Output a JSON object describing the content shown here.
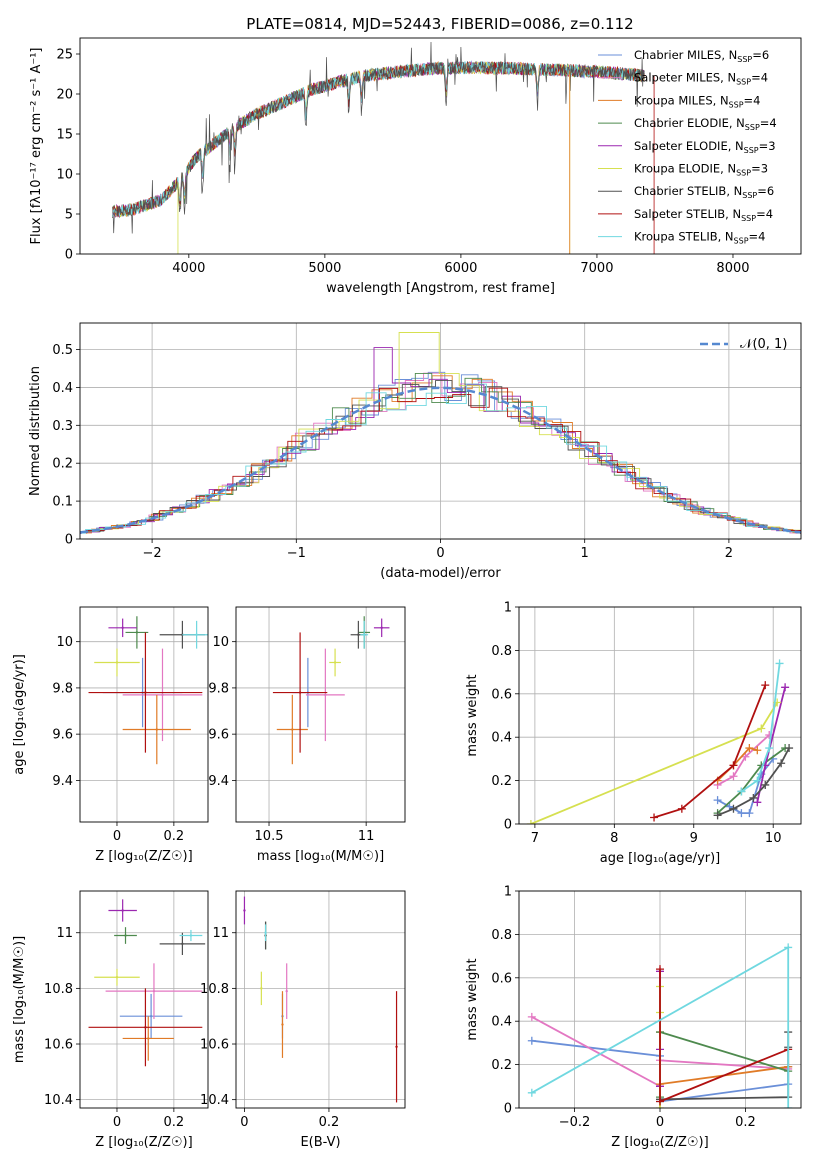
{
  "figure": {
    "title": "PLATE=0814, MJD=52443, FIBERID=0086, z=0.112"
  },
  "model_colors": {
    "Chabrier MILES": "#6a8fd8",
    "Salpeter MILES": "#e377c2",
    "Kroupa MILES": "#e07b27",
    "Chabrier ELODIE": "#4e8a4e",
    "Salpeter ELODIE": "#9b27b0",
    "Kroupa ELODIE": "#d6e050",
    "Chabrier STELIB": "#505050",
    "Salpeter STELIB": "#b01010",
    "Kroupa STELIB": "#70d8e0"
  },
  "chart_data": [
    {
      "id": "spectrum",
      "type": "line",
      "xlabel": "wavelength [Angstrom, rest frame]",
      "ylabel": "Flux [fλ10⁻¹⁷ erg cm⁻² s⁻¹ A⁻¹]",
      "xlim": [
        3200,
        8500
      ],
      "ylim": [
        0,
        27
      ],
      "xticks": [
        4000,
        5000,
        6000,
        7000,
        8000
      ],
      "yticks": [
        0,
        5,
        10,
        15,
        20,
        25
      ],
      "grid": false,
      "legend_position": "right",
      "continuum": {
        "x": [
          3450,
          3600,
          3800,
          3950,
          4050,
          4200,
          4350,
          4500,
          4700,
          4900,
          5100,
          5300,
          5500,
          5800,
          6100,
          6400,
          6700,
          7000,
          7200,
          7350
        ],
        "y": [
          5.3,
          5.6,
          6.8,
          9.5,
          12,
          14,
          16,
          17.5,
          19,
          20.5,
          21.5,
          22.3,
          22.7,
          23.2,
          23.3,
          23.2,
          23,
          22.8,
          22.5,
          22.3
        ]
      },
      "series": [
        {
          "name": "Chabrier MILES, N_SSP=6"
        },
        {
          "name": "Salpeter MILES, N_SSP=4"
        },
        {
          "name": "Kroupa MILES, N_SSP=4"
        },
        {
          "name": "Chabrier ELODIE, N_SSP=4"
        },
        {
          "name": "Salpeter ELODIE, N_SSP=3"
        },
        {
          "name": "Kroupa ELODIE, N_SSP=3"
        },
        {
          "name": "Chabrier STELIB, N_SSP=6"
        },
        {
          "name": "Salpeter STELIB, N_SSP=4"
        },
        {
          "name": "Kroupa STELIB, N_SSP=4"
        }
      ],
      "legend_labels": [
        [
          "Chabrier MILES, N",
          "SSP",
          "=6"
        ],
        [
          "Salpeter MILES, N",
          "SSP",
          "=4"
        ],
        [
          "Kroupa MILES, N",
          "SSP",
          "=4"
        ],
        [
          "Chabrier ELODIE, N",
          "SSP",
          "=4"
        ],
        [
          "Salpeter ELODIE, N",
          "SSP",
          "=3"
        ],
        [
          "Kroupa ELODIE, N",
          "SSP",
          "=3"
        ],
        [
          "Chabrier STELIB, N",
          "SSP",
          "=6"
        ],
        [
          "Salpeter STELIB, N",
          "SSP",
          "=4"
        ],
        [
          "Kroupa STELIB, N",
          "SSP",
          "=4"
        ]
      ]
    },
    {
      "id": "residuals",
      "type": "histogram",
      "xlabel": "(data-model)/error",
      "ylabel": "Normed distribution",
      "xlim": [
        -2.5,
        2.5
      ],
      "ylim": [
        0,
        0.57
      ],
      "xticks": [
        -2,
        -1,
        0,
        1,
        2
      ],
      "yticks": [
        0.0,
        0.1,
        0.2,
        0.3,
        0.4,
        0.5
      ],
      "grid": true,
      "reference_curve": "N(0,1)",
      "legend_position": "top-right"
    },
    {
      "id": "age_vs_Z",
      "type": "scatter",
      "xlabel": "Z [log₁₀(Z/Z☉)]",
      "ylabel": "age  [log₁₀(age/yr)]",
      "xlim": [
        -0.13,
        0.32
      ],
      "ylim": [
        9.22,
        10.15
      ],
      "xticks": [
        0.0,
        0.2
      ],
      "yticks": [
        9.4,
        9.6,
        9.8,
        10.0
      ],
      "grid": true,
      "points": [
        {
          "model": "Chabrier MILES",
          "x": 0.09,
          "y": 9.78,
          "xerr": 0.14,
          "yerr": 0.15
        },
        {
          "model": "Salpeter MILES",
          "x": 0.16,
          "y": 9.77,
          "xerr": 0.14,
          "yerr": 0.2
        },
        {
          "model": "Kroupa MILES",
          "x": 0.14,
          "y": 9.62,
          "xerr": 0.12,
          "yerr": 0.15
        },
        {
          "model": "Chabrier ELODIE",
          "x": 0.07,
          "y": 10.04,
          "xerr": 0.04,
          "yerr": 0.07
        },
        {
          "model": "Salpeter ELODIE",
          "x": 0.02,
          "y": 10.06,
          "xerr": 0.05,
          "yerr": 0.04
        },
        {
          "model": "Kroupa ELODIE",
          "x": 0.0,
          "y": 9.91,
          "xerr": 0.08,
          "yerr": 0.06
        },
        {
          "model": "Chabrier STELIB",
          "x": 0.23,
          "y": 10.03,
          "xerr": 0.08,
          "yerr": 0.06
        },
        {
          "model": "Salpeter STELIB",
          "x": 0.1,
          "y": 9.78,
          "xerr": 0.2,
          "yerr": 0.26
        },
        {
          "model": "Kroupa STELIB",
          "x": 0.28,
          "y": 10.03,
          "xerr": 0.05,
          "yerr": 0.06
        }
      ]
    },
    {
      "id": "age_vs_mass",
      "type": "scatter",
      "xlabel": "mass [log₁₀(M/M☉)]",
      "ylabel": "",
      "xlim": [
        10.33,
        11.2
      ],
      "ylim": [
        9.22,
        10.15
      ],
      "xticks": [
        10.5,
        11.0
      ],
      "yticks": [
        9.4,
        9.6,
        9.8,
        10.0
      ],
      "grid": true,
      "points": [
        {
          "model": "Chabrier MILES",
          "x": 10.7,
          "y": 9.78,
          "xerr": 0.08,
          "yerr": 0.15
        },
        {
          "model": "Salpeter MILES",
          "x": 10.79,
          "y": 9.77,
          "xerr": 0.1,
          "yerr": 0.2
        },
        {
          "model": "Kroupa MILES",
          "x": 10.62,
          "y": 9.62,
          "xerr": 0.08,
          "yerr": 0.15
        },
        {
          "model": "Chabrier ELODIE",
          "x": 10.99,
          "y": 10.04,
          "xerr": 0.03,
          "yerr": 0.07
        },
        {
          "model": "Salpeter ELODIE",
          "x": 11.08,
          "y": 10.06,
          "xerr": 0.04,
          "yerr": 0.04
        },
        {
          "model": "Kroupa ELODIE",
          "x": 10.84,
          "y": 9.91,
          "xerr": 0.03,
          "yerr": 0.06
        },
        {
          "model": "Chabrier STELIB",
          "x": 10.96,
          "y": 10.03,
          "xerr": 0.04,
          "yerr": 0.06
        },
        {
          "model": "Salpeter STELIB",
          "x": 10.66,
          "y": 9.78,
          "xerr": 0.14,
          "yerr": 0.26
        },
        {
          "model": "Kroupa STELIB",
          "x": 10.99,
          "y": 10.03,
          "xerr": 0.02,
          "yerr": 0.06
        }
      ]
    },
    {
      "id": "massweight_vs_age",
      "type": "line",
      "xlabel": "age  [log₁₀(age/yr)]",
      "ylabel": "mass weight",
      "xlim": [
        6.8,
        10.35
      ],
      "ylim": [
        0.0,
        1.0
      ],
      "xticks": [
        7,
        8,
        9,
        10
      ],
      "yticks": [
        0.0,
        0.2,
        0.4,
        0.6,
        0.8,
        1.0
      ],
      "grid": true,
      "series": [
        {
          "model": "Chabrier MILES",
          "x": [
            9.3,
            9.45,
            9.6,
            9.7,
            9.85,
            10.0
          ],
          "y": [
            0.11,
            0.08,
            0.05,
            0.05,
            0.23,
            0.3
          ]
        },
        {
          "model": "Salpeter MILES",
          "x": [
            9.3,
            9.5,
            9.65,
            9.95
          ],
          "y": [
            0.18,
            0.22,
            0.31,
            0.41
          ]
        },
        {
          "model": "Kroupa MILES",
          "x": [
            9.3,
            9.5,
            9.7,
            9.8
          ],
          "y": [
            0.2,
            0.27,
            0.35,
            0.34
          ]
        },
        {
          "model": "Chabrier ELODIE",
          "x": [
            9.3,
            9.6,
            9.85,
            10.15
          ],
          "y": [
            0.05,
            0.15,
            0.27,
            0.35
          ]
        },
        {
          "model": "Salpeter ELODIE",
          "x": [
            9.8,
            9.9,
            10.15
          ],
          "y": [
            0.1,
            0.27,
            0.63
          ]
        },
        {
          "model": "Kroupa ELODIE",
          "x": [
            6.95,
            9.85,
            10.05
          ],
          "y": [
            0.0,
            0.44,
            0.56
          ]
        },
        {
          "model": "Chabrier STELIB",
          "x": [
            9.3,
            9.5,
            9.75,
            9.9,
            10.1,
            10.2
          ],
          "y": [
            0.04,
            0.07,
            0.12,
            0.18,
            0.28,
            0.35
          ]
        },
        {
          "model": "Salpeter STELIB",
          "x": [
            8.5,
            8.85,
            9.5,
            9.9
          ],
          "y": [
            0.03,
            0.07,
            0.27,
            0.64
          ]
        },
        {
          "model": "Kroupa STELIB",
          "x": [
            9.6,
            9.8,
            9.95,
            10.08
          ],
          "y": [
            0.15,
            0.2,
            0.35,
            0.74
          ]
        }
      ]
    },
    {
      "id": "mass_vs_Z",
      "type": "scatter",
      "xlabel": "Z [log₁₀(Z/Z☉)]",
      "ylabel": "mass [log₁₀(M/M☉)]",
      "xlim": [
        -0.13,
        0.32
      ],
      "ylim": [
        10.37,
        11.15
      ],
      "xticks": [
        0.0,
        0.2
      ],
      "yticks": [
        10.4,
        10.6,
        10.8,
        11.0
      ],
      "grid": true,
      "points": [
        {
          "model": "Chabrier MILES",
          "x": 0.12,
          "y": 10.7,
          "xerr": 0.11,
          "yerr": 0.08
        },
        {
          "model": "Salpeter MILES",
          "x": 0.13,
          "y": 10.79,
          "xerr": 0.17,
          "yerr": 0.1
        },
        {
          "model": "Kroupa MILES",
          "x": 0.11,
          "y": 10.62,
          "xerr": 0.09,
          "yerr": 0.08
        },
        {
          "model": "Chabrier ELODIE",
          "x": 0.03,
          "y": 10.99,
          "xerr": 0.04,
          "yerr": 0.03
        },
        {
          "model": "Salpeter ELODIE",
          "x": 0.02,
          "y": 11.08,
          "xerr": 0.05,
          "yerr": 0.04
        },
        {
          "model": "Kroupa ELODIE",
          "x": 0.0,
          "y": 10.84,
          "xerr": 0.08,
          "yerr": 0.03
        },
        {
          "model": "Chabrier STELIB",
          "x": 0.23,
          "y": 10.96,
          "xerr": 0.08,
          "yerr": 0.04
        },
        {
          "model": "Salpeter STELIB",
          "x": 0.1,
          "y": 10.66,
          "xerr": 0.2,
          "yerr": 0.14
        },
        {
          "model": "Kroupa STELIB",
          "x": 0.26,
          "y": 10.99,
          "xerr": 0.04,
          "yerr": 0.02
        }
      ]
    },
    {
      "id": "mass_vs_ebv",
      "type": "scatter",
      "xlabel": "E(B-V)",
      "ylabel": "",
      "xlim": [
        -0.02,
        0.38
      ],
      "ylim": [
        10.37,
        11.15
      ],
      "xticks": [
        0.0,
        0.2
      ],
      "yticks": [
        10.4,
        10.6,
        10.8,
        11.0
      ],
      "grid": true,
      "points": [
        {
          "model": "Chabrier MILES",
          "x": 0.09,
          "y": 10.7,
          "xerr": 0.0,
          "yerr": 0.08
        },
        {
          "model": "Salpeter MILES",
          "x": 0.1,
          "y": 10.79,
          "xerr": 0.0,
          "yerr": 0.1
        },
        {
          "model": "Kroupa MILES",
          "x": 0.09,
          "y": 10.67,
          "xerr": 0.0,
          "yerr": 0.12
        },
        {
          "model": "Chabrier ELODIE",
          "x": 0.05,
          "y": 10.99,
          "xerr": 0.0,
          "yerr": 0.05
        },
        {
          "model": "Salpeter ELODIE",
          "x": 0.0,
          "y": 11.08,
          "xerr": 0.0,
          "yerr": 0.05
        },
        {
          "model": "Kroupa ELODIE",
          "x": 0.04,
          "y": 10.8,
          "xerr": 0.0,
          "yerr": 0.06
        },
        {
          "model": "Chabrier STELIB",
          "x": 0.05,
          "y": 10.99,
          "xerr": 0.0,
          "yerr": 0.05
        },
        {
          "model": "Salpeter STELIB",
          "x": 0.36,
          "y": 10.59,
          "xerr": 0.0,
          "yerr": 0.2
        },
        {
          "model": "Kroupa STELIB",
          "x": 0.05,
          "y": 11.0,
          "xerr": 0.0,
          "yerr": 0.03
        }
      ]
    },
    {
      "id": "massweight_vs_Z",
      "type": "line",
      "xlabel": "Z [log₁₀(Z/Z☉)]",
      "ylabel": "mass weight",
      "xlim": [
        -0.33,
        0.33
      ],
      "ylim": [
        0.0,
        1.0
      ],
      "xticks": [
        -0.2,
        0.0,
        0.2
      ],
      "yticks": [
        0.0,
        0.2,
        0.4,
        0.6,
        0.8,
        1.0
      ],
      "grid": true,
      "series": [
        {
          "model": "Chabrier MILES",
          "x": [
            -0.3,
            0.0,
            0.0,
            0.3,
            0.3
          ],
          "y": [
            0.31,
            0.24,
            0.03,
            0.11,
            0.19
          ]
        },
        {
          "model": "Salpeter MILES",
          "x": [
            -0.3,
            0.0,
            0.0,
            0.3
          ],
          "y": [
            0.42,
            0.1,
            0.22,
            0.18
          ]
        },
        {
          "model": "Kroupa MILES",
          "x": [
            0.0,
            0.0,
            0.3
          ],
          "y": [
            0.35,
            0.11,
            0.19
          ]
        },
        {
          "model": "Chabrier ELODIE",
          "x": [
            0.0,
            0.0,
            0.3
          ],
          "y": [
            0.05,
            0.35,
            0.17
          ]
        },
        {
          "model": "Salpeter ELODIE",
          "x": [
            0.0,
            0.0,
            0.0
          ],
          "y": [
            0.63,
            0.1,
            0.27
          ]
        },
        {
          "model": "Kroupa ELODIE",
          "x": [
            0.0,
            0.0,
            0.0
          ],
          "y": [
            0.44,
            0.56,
            0.0
          ]
        },
        {
          "model": "Chabrier STELIB",
          "x": [
            0.0,
            0.3,
            0.3,
            0.3
          ],
          "y": [
            0.04,
            0.05,
            0.35,
            0.28
          ]
        },
        {
          "model": "Salpeter STELIB",
          "x": [
            0.0,
            0.0,
            0.3
          ],
          "y": [
            0.64,
            0.03,
            0.27
          ]
        },
        {
          "model": "Kroupa STELIB",
          "x": [
            -0.3,
            0.3,
            0.3
          ],
          "y": [
            0.07,
            0.74,
            0.0
          ]
        }
      ]
    }
  ]
}
